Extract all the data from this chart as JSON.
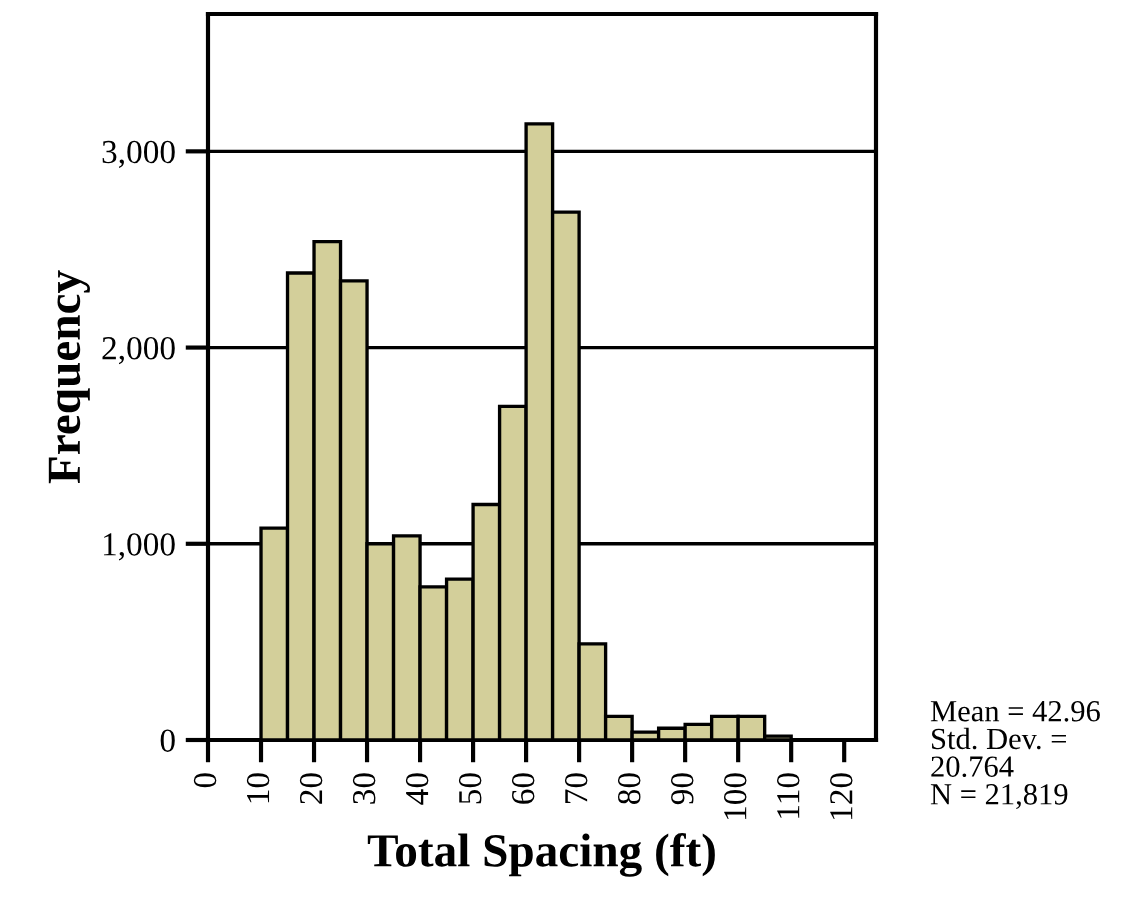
{
  "chart_data": {
    "type": "histogram",
    "xlabel": "Total Spacing (ft)",
    "ylabel": "Frequency",
    "bins": [
      0,
      5,
      10,
      15,
      20,
      25,
      30,
      35,
      40,
      45,
      50,
      55,
      60,
      65,
      70,
      75,
      80,
      85,
      90,
      95,
      100,
      105,
      110,
      115,
      120,
      125
    ],
    "values": [
      0,
      0,
      1080,
      2380,
      2540,
      2340,
      1000,
      1040,
      780,
      820,
      1200,
      1700,
      3140,
      2690,
      490,
      120,
      40,
      60,
      80,
      120,
      120,
      20,
      0,
      0,
      0
    ],
    "color": "#d3cf9a",
    "xlim": [
      0,
      126
    ],
    "xticks": [
      0,
      10,
      20,
      30,
      40,
      50,
      60,
      70,
      80,
      90,
      100,
      110,
      120
    ],
    "ylim": [
      0,
      3700
    ],
    "yticks": [
      {
        "value": 0,
        "label": "0"
      },
      {
        "value": 1000,
        "label": "1,000"
      },
      {
        "value": 2000,
        "label": "2,000"
      },
      {
        "value": 3000,
        "label": "3,000"
      }
    ],
    "grid": "y",
    "annotations": [
      "Mean = 42.96\nStd. Dev. =\n20.764\nN = 21,819"
    ]
  }
}
